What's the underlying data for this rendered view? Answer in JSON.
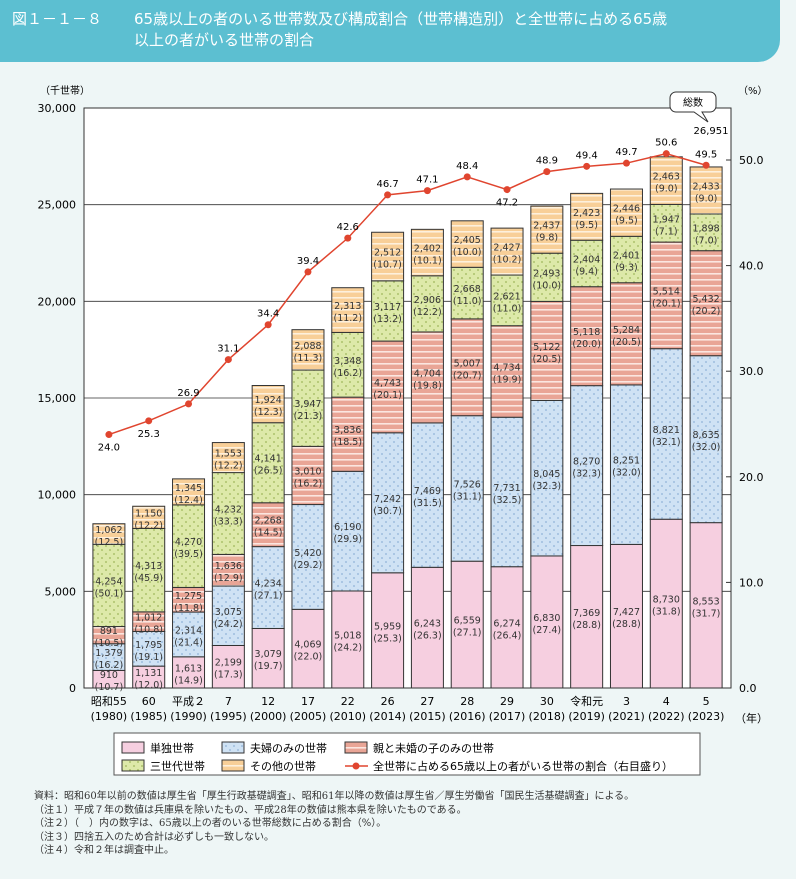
{
  "title": {
    "number": "図１－１－８",
    "line1": "65歳以上の者のいる世帯数及び構成割合（世帯構造別）と全世帯に占める65歳",
    "line2": "以上の者がいる世帯の割合"
  },
  "chart_data": {
    "type": "stacked-bar+line",
    "left_axis_unit": "（千世帯）",
    "right_axis_unit": "（%）",
    "x_unit": "（年）",
    "left_ylim": [
      0,
      30000
    ],
    "left_ticks": [
      "0",
      "5,000",
      "10,000",
      "15,000",
      "20,000",
      "25,000",
      "30,000"
    ],
    "right_ylim": [
      0,
      50
    ],
    "right_ticks": [
      "0.0",
      "10.0",
      "20.0",
      "30.0",
      "40.0",
      "50.0"
    ],
    "grid": "horizontal",
    "legend_placement": "bottom",
    "categories": [
      {
        "label": "昭和55",
        "year": "(1980)"
      },
      {
        "label": "60",
        "year": "(1985)"
      },
      {
        "label": "平成２",
        "year": "(1990)"
      },
      {
        "label": "7",
        "year": "(1995)"
      },
      {
        "label": "12",
        "year": "(2000)"
      },
      {
        "label": "17",
        "year": "(2005)"
      },
      {
        "label": "22",
        "year": "(2010)"
      },
      {
        "label": "26",
        "year": "(2014)"
      },
      {
        "label": "27",
        "year": "(2015)"
      },
      {
        "label": "28",
        "year": "(2016)"
      },
      {
        "label": "29",
        "year": "(2017)"
      },
      {
        "label": "30",
        "year": "(2018)"
      },
      {
        "label": "令和元",
        "year": "(2019)"
      },
      {
        "label": "3",
        "year": "(2021)"
      },
      {
        "label": "4",
        "year": "(2022)"
      },
      {
        "label": "5",
        "year": "(2023)"
      }
    ],
    "series": [
      {
        "name": "単独世帯",
        "color": "#f6cfe0",
        "pattern": "plain",
        "values": [
          910,
          1131,
          1613,
          2199,
          3079,
          4069,
          5018,
          5959,
          6243,
          6559,
          6274,
          6830,
          7369,
          7427,
          8730,
          8553
        ],
        "shares": [
          "10.7",
          "12.0",
          "14.9",
          "17.3",
          "19.7",
          "22.0",
          "24.2",
          "25.3",
          "26.3",
          "27.1",
          "26.4",
          "27.4",
          "28.8",
          "28.8",
          "31.8",
          "31.7"
        ]
      },
      {
        "name": "夫婦のみの世帯",
        "color": "#cfe2f4",
        "pattern": "dots",
        "values": [
          1379,
          1795,
          2314,
          3075,
          4234,
          5420,
          6190,
          7242,
          7469,
          7526,
          7731,
          8045,
          8270,
          8251,
          8821,
          8635
        ],
        "shares": [
          "16.2",
          "19.1",
          "21.4",
          "24.2",
          "27.1",
          "29.2",
          "29.9",
          "30.7",
          "31.5",
          "31.1",
          "32.5",
          "32.3",
          "32.3",
          "32.0",
          "32.1",
          "32.0"
        ]
      },
      {
        "name": "親と未婚の子のみの世帯",
        "color": "#e9a596",
        "pattern": "stripes",
        "values": [
          891,
          1012,
          1275,
          1636,
          2268,
          3010,
          3836,
          4743,
          4704,
          5007,
          4734,
          5122,
          5118,
          5284,
          5514,
          5432
        ],
        "shares": [
          "10.5",
          "10.8",
          "11.8",
          "12.9",
          "14.5",
          "16.2",
          "18.5",
          "20.1",
          "19.8",
          "20.7",
          "19.9",
          "20.5",
          "20.0",
          "20.5",
          "20.1",
          "20.2"
        ]
      },
      {
        "name": "三世代世帯",
        "color": "#dde9a9",
        "pattern": "dots",
        "values": [
          4254,
          4313,
          4270,
          4232,
          4141,
          3947,
          3348,
          3117,
          2906,
          2668,
          2621,
          2493,
          2404,
          2401,
          1947,
          1898
        ],
        "shares": [
          "50.1",
          "45.9",
          "39.5",
          "33.3",
          "26.5",
          "21.3",
          "16.2",
          "13.2",
          "12.2",
          "11.0",
          "11.0",
          "10.0",
          "9.4",
          "9.3",
          "7.1",
          "7.0"
        ]
      },
      {
        "name": "その他の世帯",
        "color": "#f8cf98",
        "pattern": "stripes",
        "values": [
          1062,
          1150,
          1345,
          1553,
          1924,
          2088,
          2313,
          2512,
          2402,
          2405,
          2427,
          2437,
          2423,
          2446,
          2463,
          2433
        ],
        "shares": [
          "12.5",
          "12.2",
          "12.4",
          "12.2",
          "12.3",
          "11.3",
          "11.2",
          "10.7",
          "10.1",
          "10.0",
          "10.2",
          "9.8",
          "9.5",
          "9.5",
          "9.0",
          "9.0"
        ]
      }
    ],
    "line": {
      "name": "全世帯に占める65歳以上の者がいる世帯の割合（右目盛り）",
      "color": "#e0452f",
      "values": [
        24.0,
        25.3,
        26.9,
        31.1,
        34.4,
        39.4,
        42.6,
        46.7,
        47.1,
        48.4,
        47.2,
        48.9,
        49.4,
        49.7,
        50.6,
        49.5
      ],
      "labels": [
        "24.0",
        "25.3",
        "26.9",
        "31.1",
        "34.4",
        "39.4",
        "42.6",
        "46.7",
        "47.1",
        "48.4",
        "47.2",
        "48.9",
        "49.4",
        "49.7",
        "50.6",
        "49.5"
      ]
    },
    "annotation": {
      "label": "総数",
      "value": "26,951"
    }
  },
  "notes": [
    "資料：昭和60年以前の数値は厚生省「厚生行政基礎調査」、昭和61年以降の数値は厚生省／厚生労働省「国民生活基礎調査」による。",
    "（注１）平成７年の数値は兵庫県を除いたもの、平成28年の数値は熊本県を除いたものである。",
    "（注２）（　）内の数字は、65歳以上の者のいる世帯総数に占める割合（%）。",
    "（注３）四捨五入のため合計は必ずしも一致しない。",
    "（注４）令和２年は調査中止。"
  ]
}
